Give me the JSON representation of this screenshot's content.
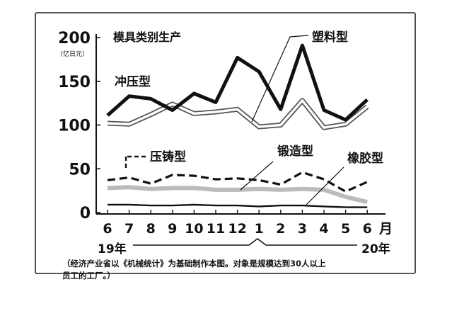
{
  "chart_data": {
    "type": "line",
    "title": "模具类别生产",
    "y_unit": "（亿日元）",
    "ylim": [
      0,
      200
    ],
    "y_ticks": [
      "0",
      "50",
      "100",
      "150",
      "200"
    ],
    "categories": [
      "6",
      "7",
      "8",
      "9",
      "10",
      "11",
      "12",
      "1",
      "2",
      "3",
      "4",
      "5",
      "6"
    ],
    "x_tail_label": "月",
    "year_labels": [
      "19年",
      "20年"
    ],
    "grid": false,
    "series": [
      {
        "name": "冲压型",
        "color": "#111111",
        "style": "thick",
        "values": [
          111,
          133,
          130,
          117,
          136,
          126,
          177,
          161,
          118,
          191,
          117,
          106,
          129
        ]
      },
      {
        "name": "塑料型",
        "color": "#666666",
        "style": "double",
        "values": [
          102,
          101,
          112,
          124,
          113,
          115,
          118,
          98,
          100,
          128,
          97,
          101,
          121
        ]
      },
      {
        "name": "压铸型",
        "color": "#111111",
        "style": "dashed",
        "values": [
          37,
          40,
          33,
          43,
          42,
          38,
          39,
          37,
          32,
          46,
          38,
          24,
          35
        ]
      },
      {
        "name": "锻造型",
        "color": "#bbbbbb",
        "style": "thick-gray",
        "values": [
          28,
          29,
          27,
          28,
          28,
          26,
          26,
          27,
          26,
          27,
          26,
          18,
          12
        ]
      },
      {
        "name": "橡胶型",
        "color": "#111111",
        "style": "thin",
        "values": [
          9,
          9,
          8,
          8,
          9,
          8,
          8,
          7,
          8,
          8,
          7,
          6,
          6
        ]
      }
    ]
  },
  "footnote": {
    "line1": "（经济产业省以《机械统计》为基础制作本图。对象是规模达到30人以上",
    "line2": "员工的工厂。）"
  }
}
